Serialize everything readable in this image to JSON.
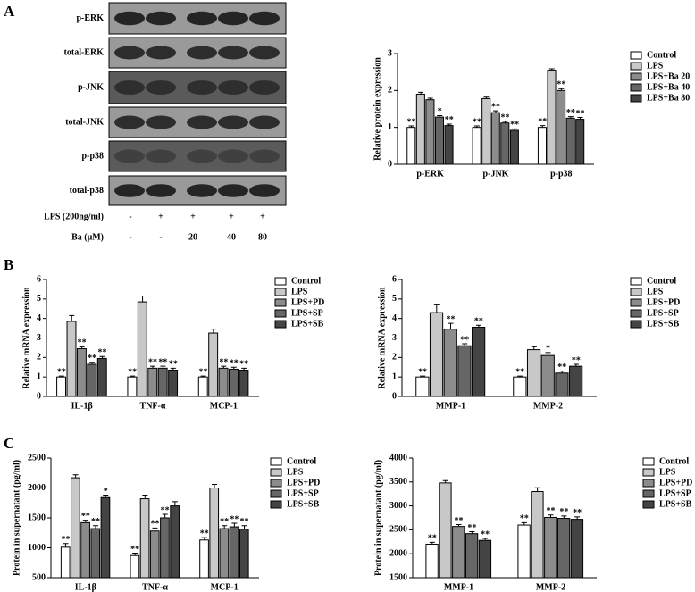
{
  "panels": [
    "A",
    "B",
    "C"
  ],
  "blot": {
    "rows": [
      "p-ERK",
      "total-ERK",
      "p-JNK",
      "total-JNK",
      "p-p38",
      "total-p38"
    ],
    "treatments": [
      {
        "label": "LPS (200ng/ml)",
        "levels": [
          "-",
          "+",
          "+",
          "+",
          "+"
        ]
      },
      {
        "label": "Ba (μM)",
        "levels": [
          "-",
          "-",
          "20",
          "40",
          "80"
        ]
      }
    ]
  },
  "chart_data": [
    {
      "type": "bar",
      "ylabel": "Relative protein expression",
      "categories": [
        "p-ERK",
        "p-JNK",
        "p-p38"
      ],
      "ylim": [
        0,
        3
      ],
      "yticks": [
        0,
        1,
        2,
        3
      ],
      "series": [
        {
          "name": "Control",
          "color": "#ffffff",
          "values": [
            1.0,
            1.0,
            1.0
          ],
          "errors": [
            0.04,
            0.04,
            0.05
          ],
          "annotations": [
            "**",
            "**",
            "**"
          ]
        },
        {
          "name": "LPS",
          "color": "#c8c8c8",
          "values": [
            1.9,
            1.78,
            2.55
          ],
          "errors": [
            0.05,
            0.04,
            0.04
          ],
          "annotations": [
            null,
            null,
            null
          ]
        },
        {
          "name": "LPS+Ba 20",
          "color": "#8c8c8c",
          "values": [
            1.75,
            1.4,
            2.0
          ],
          "errors": [
            0.04,
            0.05,
            0.05
          ],
          "annotations": [
            null,
            "**",
            "**"
          ]
        },
        {
          "name": "LPS+Ba 40",
          "color": "#666666",
          "values": [
            1.28,
            1.12,
            1.25
          ],
          "errors": [
            0.04,
            0.04,
            0.04
          ],
          "annotations": [
            "*",
            "**",
            "**"
          ]
        },
        {
          "name": "LPS+Ba 80",
          "color": "#444444",
          "values": [
            1.05,
            0.92,
            1.22
          ],
          "errors": [
            0.04,
            0.04,
            0.05
          ],
          "annotations": [
            "**",
            "**",
            "**"
          ]
        }
      ]
    },
    {
      "type": "bar",
      "ylabel": "Relative mRNA expression",
      "categories": [
        "IL-1β",
        "TNF-α",
        "MCP-1"
      ],
      "ylim": [
        0,
        6
      ],
      "yticks": [
        0,
        1,
        2,
        3,
        4,
        5,
        6
      ],
      "series": [
        {
          "name": "Control",
          "color": "#ffffff",
          "values": [
            1.0,
            1.0,
            1.0
          ],
          "errors": [
            0.05,
            0.05,
            0.05
          ],
          "annotations": [
            "**",
            "**",
            "**"
          ]
        },
        {
          "name": "LPS",
          "color": "#c8c8c8",
          "values": [
            3.85,
            4.85,
            3.25
          ],
          "errors": [
            0.3,
            0.3,
            0.2
          ],
          "annotations": [
            null,
            null,
            null
          ]
        },
        {
          "name": "LPS+PD",
          "color": "#8c8c8c",
          "values": [
            2.45,
            1.45,
            1.45
          ],
          "errors": [
            0.1,
            0.1,
            0.1
          ],
          "annotations": [
            "**",
            "**",
            "**"
          ]
        },
        {
          "name": "LPS+SP",
          "color": "#666666",
          "values": [
            1.65,
            1.45,
            1.4
          ],
          "errors": [
            0.1,
            0.1,
            0.1
          ],
          "annotations": [
            "**",
            "**",
            "**"
          ]
        },
        {
          "name": "LPS+SB",
          "color": "#444444",
          "values": [
            1.95,
            1.35,
            1.35
          ],
          "errors": [
            0.1,
            0.1,
            0.1
          ],
          "annotations": [
            "**",
            "**",
            "**"
          ]
        }
      ]
    },
    {
      "type": "bar",
      "ylabel": "Relative mRNA expression",
      "categories": [
        "MMP-1",
        "MMP-2"
      ],
      "ylim": [
        0,
        6
      ],
      "yticks": [
        0,
        1,
        2,
        3,
        4,
        5,
        6
      ],
      "series": [
        {
          "name": "Control",
          "color": "#ffffff",
          "values": [
            1.0,
            1.0
          ],
          "errors": [
            0.05,
            0.05
          ],
          "annotations": [
            "**",
            "**"
          ]
        },
        {
          "name": "LPS",
          "color": "#c8c8c8",
          "values": [
            4.3,
            2.4
          ],
          "errors": [
            0.4,
            0.15
          ],
          "annotations": [
            null,
            null
          ]
        },
        {
          "name": "LPS+PD",
          "color": "#8c8c8c",
          "values": [
            3.45,
            2.1
          ],
          "errors": [
            0.3,
            0.15
          ],
          "annotations": [
            "**",
            "*"
          ]
        },
        {
          "name": "LPS+SP",
          "color": "#666666",
          "values": [
            2.6,
            1.2
          ],
          "errors": [
            0.1,
            0.1
          ],
          "annotations": [
            "**",
            "**"
          ]
        },
        {
          "name": "LPS+SB",
          "color": "#444444",
          "values": [
            3.55,
            1.55
          ],
          "errors": [
            0.1,
            0.1
          ],
          "annotations": [
            "**",
            "**"
          ]
        }
      ]
    },
    {
      "type": "bar",
      "ylabel": "Protein in supernatant (pg/ml)",
      "categories": [
        "IL-1β",
        "TNF-α",
        "MCP-1"
      ],
      "ylim": [
        500,
        2500
      ],
      "yticks": [
        500,
        1000,
        1500,
        2000,
        2500
      ],
      "series": [
        {
          "name": "Control",
          "color": "#ffffff",
          "values": [
            1010,
            870,
            1130
          ],
          "errors": [
            60,
            40,
            40
          ],
          "annotations": [
            "**",
            "**",
            "**"
          ]
        },
        {
          "name": "LPS",
          "color": "#c8c8c8",
          "values": [
            2170,
            1820,
            2000
          ],
          "errors": [
            50,
            60,
            60
          ],
          "annotations": [
            null,
            null,
            null
          ]
        },
        {
          "name": "LPS+PD",
          "color": "#8c8c8c",
          "values": [
            1420,
            1280,
            1320
          ],
          "errors": [
            40,
            50,
            50
          ],
          "annotations": [
            "**",
            "**",
            "**"
          ]
        },
        {
          "name": "LPS+SP",
          "color": "#666666",
          "values": [
            1320,
            1500,
            1350
          ],
          "errors": [
            50,
            60,
            60
          ],
          "annotations": [
            "**",
            "**",
            "**"
          ]
        },
        {
          "name": "LPS+SB",
          "color": "#444444",
          "values": [
            1840,
            1700,
            1310
          ],
          "errors": [
            40,
            70,
            60
          ],
          "annotations": [
            "*",
            null,
            "**"
          ]
        }
      ]
    },
    {
      "type": "bar",
      "ylabel": "Protein in supernatant (pg/ml)",
      "categories": [
        "MMP-1",
        "MMP-2"
      ],
      "ylim": [
        1500,
        4000
      ],
      "yticks": [
        1500,
        2000,
        2500,
        3000,
        3500,
        4000
      ],
      "series": [
        {
          "name": "Control",
          "color": "#ffffff",
          "values": [
            2200,
            2600
          ],
          "errors": [
            40,
            50
          ],
          "annotations": [
            "**",
            "**"
          ]
        },
        {
          "name": "LPS",
          "color": "#c8c8c8",
          "values": [
            3480,
            3300
          ],
          "errors": [
            50,
            80
          ],
          "annotations": [
            null,
            null
          ]
        },
        {
          "name": "LPS+PD",
          "color": "#8c8c8c",
          "values": [
            2570,
            2760
          ],
          "errors": [
            40,
            50
          ],
          "annotations": [
            "**",
            "**"
          ]
        },
        {
          "name": "LPS+SP",
          "color": "#666666",
          "values": [
            2420,
            2740
          ],
          "errors": [
            40,
            50
          ],
          "annotations": [
            "**",
            "**"
          ]
        },
        {
          "name": "LPS+SB",
          "color": "#444444",
          "values": [
            2280,
            2720
          ],
          "errors": [
            40,
            50
          ],
          "annotations": [
            "**",
            "**"
          ]
        }
      ]
    }
  ]
}
